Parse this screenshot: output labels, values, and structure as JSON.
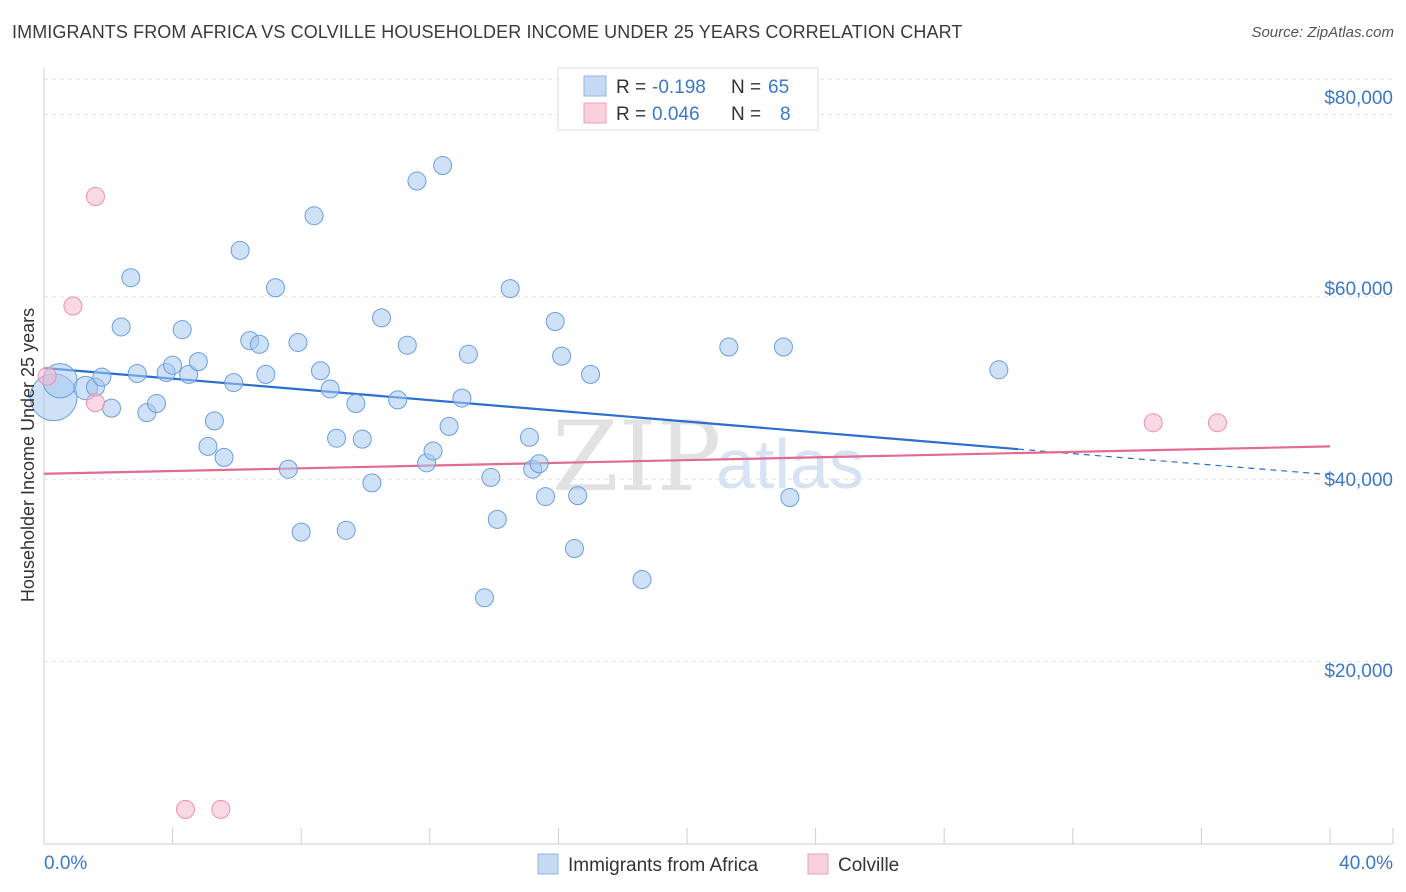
{
  "header": {
    "title": "IMMIGRANTS FROM AFRICA VS COLVILLE HOUSEHOLDER INCOME UNDER 25 YEARS CORRELATION CHART",
    "source": "Source: ZipAtlas.com"
  },
  "watermark": {
    "zip": "ZIP",
    "atlas": "atlas"
  },
  "legend": {
    "r_label": "R =",
    "n_label": "N =",
    "rows": [
      {
        "r": "-0.198",
        "n": "65"
      },
      {
        "r": "0.046",
        "n": "8"
      }
    ]
  },
  "chart_data": {
    "type": "scatter",
    "ylabel": "Householder Income Under 25 years",
    "xlabel": "",
    "x_tick_labels": [
      "0.0%",
      "40.0%"
    ],
    "y_tick_labels": [
      "$20,000",
      "$40,000",
      "$60,000",
      "$80,000"
    ],
    "xlim": [
      0,
      40
    ],
    "ylim": [
      0,
      84000
    ],
    "y_ticks": [
      20000,
      40000,
      60000,
      80000
    ],
    "grid": true,
    "legend_position": "top-center",
    "colors": {
      "africa": "#6a9fe0",
      "colville": "#ef8fab",
      "africa_line": "#2a6fce",
      "colville_line": "#e06b93"
    },
    "series": [
      {
        "name": "Immigrants from Africa",
        "key": "africa",
        "trend": {
          "x": [
            0,
            30.3
          ],
          "y": [
            52200,
            43300
          ],
          "dashed_to": [
            40,
            40500
          ]
        },
        "points": [
          [
            0.3,
            49000,
            2.6
          ],
          [
            0.5,
            50800,
            1.9
          ],
          [
            1.3,
            50000,
            1.3
          ],
          [
            1.6,
            50100,
            1.0
          ],
          [
            1.8,
            51200,
            1.0
          ],
          [
            2.1,
            47800,
            1.0
          ],
          [
            2.4,
            56700,
            1.0
          ],
          [
            2.7,
            62100,
            1.0
          ],
          [
            2.9,
            51600,
            1.0
          ],
          [
            3.2,
            47300,
            1.0
          ],
          [
            3.5,
            48300,
            1.0
          ],
          [
            3.8,
            51700,
            1.0
          ],
          [
            4.0,
            52500,
            1.0
          ],
          [
            4.3,
            56400,
            1.0
          ],
          [
            4.5,
            51500,
            1.0
          ],
          [
            4.8,
            52900,
            1.0
          ],
          [
            5.1,
            43600,
            1.0
          ],
          [
            5.3,
            46400,
            1.0
          ],
          [
            5.6,
            42400,
            1.0
          ],
          [
            5.9,
            50600,
            1.0
          ],
          [
            6.1,
            65100,
            1.0
          ],
          [
            6.4,
            55200,
            1.0
          ],
          [
            6.7,
            54800,
            1.0
          ],
          [
            6.9,
            51500,
            1.0
          ],
          [
            7.2,
            61000,
            1.0
          ],
          [
            7.6,
            41100,
            1.0
          ],
          [
            7.9,
            55000,
            1.0
          ],
          [
            8.0,
            34200,
            1.0
          ],
          [
            8.4,
            68900,
            1.0
          ],
          [
            8.6,
            51900,
            1.0
          ],
          [
            8.9,
            49900,
            1.0
          ],
          [
            9.1,
            44500,
            1.0
          ],
          [
            9.4,
            34400,
            1.0
          ],
          [
            9.7,
            48300,
            1.0
          ],
          [
            9.9,
            44400,
            1.0
          ],
          [
            10.2,
            39600,
            1.0
          ],
          [
            10.5,
            57700,
            1.0
          ],
          [
            11.0,
            48700,
            1.0
          ],
          [
            11.3,
            54700,
            1.0
          ],
          [
            11.6,
            72700,
            1.0
          ],
          [
            11.9,
            41800,
            1.0
          ],
          [
            12.1,
            43100,
            1.0
          ],
          [
            12.4,
            74400,
            1.0
          ],
          [
            12.6,
            45800,
            1.0
          ],
          [
            13.0,
            48900,
            1.0
          ],
          [
            13.2,
            53700,
            1.0
          ],
          [
            13.7,
            27000,
            1.0
          ],
          [
            13.9,
            40200,
            1.0
          ],
          [
            14.1,
            35600,
            1.0
          ],
          [
            14.5,
            60900,
            1.0
          ],
          [
            15.1,
            44600,
            1.0
          ],
          [
            15.2,
            41100,
            1.0
          ],
          [
            15.4,
            41700,
            1.0
          ],
          [
            15.6,
            38100,
            1.0
          ],
          [
            15.9,
            57300,
            1.0
          ],
          [
            16.1,
            53500,
            1.0
          ],
          [
            16.5,
            32400,
            1.0
          ],
          [
            17.0,
            51500,
            1.0
          ],
          [
            18.6,
            29000,
            1.0
          ],
          [
            21.3,
            54500,
            1.0
          ],
          [
            23.2,
            38000,
            1.0
          ],
          [
            23.0,
            54500,
            1.0
          ],
          [
            29.7,
            52000,
            1.0
          ],
          [
            16.6,
            38200,
            1.0
          ],
          [
            12.5,
            34800,
            0.0
          ]
        ]
      },
      {
        "name": "Colville",
        "key": "colville",
        "trend": {
          "x": [
            0,
            40
          ],
          "y": [
            40600,
            43600
          ]
        },
        "points": [
          [
            0.1,
            51300,
            1.0
          ],
          [
            1.6,
            48400,
            1.0
          ],
          [
            1.6,
            71000,
            1.0
          ],
          [
            0.9,
            59000,
            1.0
          ],
          [
            34.5,
            46200,
            1.0
          ],
          [
            36.5,
            46200,
            1.0
          ],
          [
            4.4,
            3800,
            1.0
          ],
          [
            5.5,
            3800,
            1.0
          ]
        ]
      }
    ]
  },
  "bottom_legend": [
    {
      "label": "Immigrants from Africa",
      "key": "africa"
    },
    {
      "label": "Colville",
      "key": "colville"
    }
  ]
}
